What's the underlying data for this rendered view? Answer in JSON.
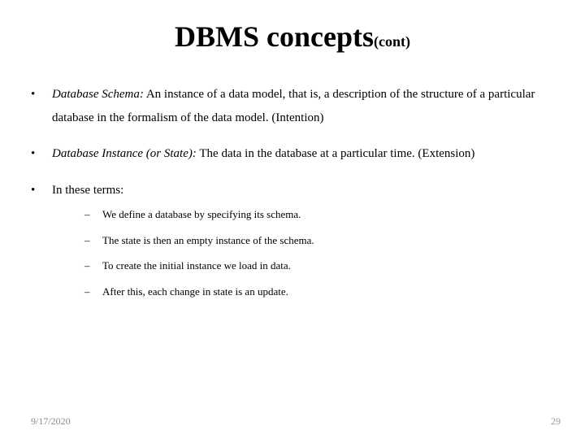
{
  "title": {
    "main": "DBMS concepts",
    "sub": "(cont)"
  },
  "bullets": [
    {
      "term": "Database Schema:",
      "text": " An instance of a data model, that is, a description of the structure of a particular database in the formalism of the data model. (Intention)"
    },
    {
      "term": "Database Instance (or State):",
      "text": " The data in the database at a particular time. (Extension)"
    },
    {
      "plain": "In these terms:",
      "sub": [
        "We define a database by specifying its schema.",
        "The state is then an empty instance of the schema.",
        "To create the initial instance we load in data.",
        "After this, each change in state is an update."
      ]
    }
  ],
  "footer": {
    "date": "9/17/2020",
    "page": "29"
  }
}
